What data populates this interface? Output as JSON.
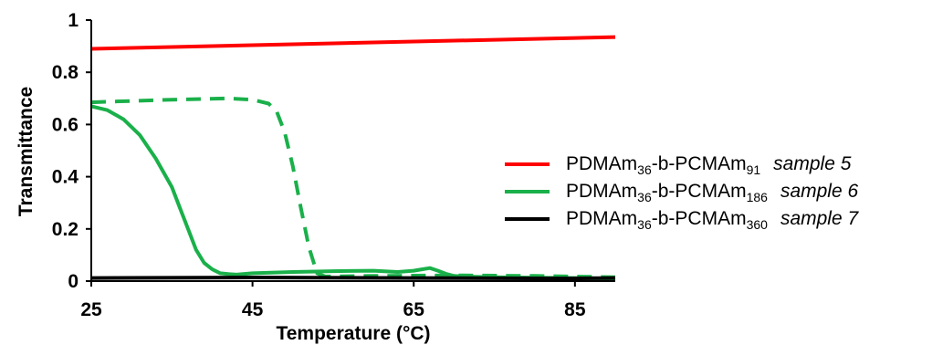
{
  "chart_data": {
    "type": "line",
    "xlabel": "Temperature (°C)",
    "ylabel": "Transmittance",
    "xlim": [
      25,
      90
    ],
    "ylim": [
      0,
      1
    ],
    "x_ticks": [
      "25",
      "45",
      "65",
      "85"
    ],
    "y_ticks": [
      "0",
      "0.2",
      "0.4",
      "0.6",
      "0.8",
      "1"
    ],
    "grid": false,
    "legend_position": "right",
    "series": [
      {
        "name": "PDMAm36-b-PCMAm91 sample 5",
        "label": {
          "base": "PDMAm",
          "sub1": "36",
          "mid": "-b-PCMAm",
          "sub2": "91",
          "note": "sample 5"
        },
        "color": "#ff0000",
        "style": "solid",
        "x": [
          25,
          90
        ],
        "y": [
          0.89,
          0.935
        ]
      },
      {
        "name": "PDMAm36-b-PCMAm186 sample 6",
        "label": {
          "base": "PDMAm",
          "sub1": "36",
          "mid": "-b-PCMAm",
          "sub2": "186",
          "note": "sample 6"
        },
        "color": "#1ab04a",
        "style": "solid",
        "x": [
          25,
          27,
          29,
          31,
          33,
          35,
          36,
          37,
          38,
          39,
          40,
          41,
          42,
          43,
          45,
          50,
          55,
          60,
          63,
          65,
          66,
          67,
          68,
          69,
          70,
          71,
          75,
          80,
          85,
          90
        ],
        "y": [
          0.67,
          0.655,
          0.62,
          0.56,
          0.47,
          0.36,
          0.28,
          0.2,
          0.12,
          0.07,
          0.045,
          0.03,
          0.027,
          0.025,
          0.03,
          0.035,
          0.038,
          0.04,
          0.035,
          0.04,
          0.045,
          0.05,
          0.04,
          0.028,
          0.02,
          0.018,
          0.015,
          0.013,
          0.012,
          0.01
        ]
      },
      {
        "name": "PDMAm36-b-PCMAm186 sample 6 (dashed)",
        "color": "#1ab04a",
        "style": "dashed",
        "x": [
          25,
          28,
          35,
          42,
          45,
          47,
          48,
          49,
          50,
          51,
          52,
          53,
          54,
          60,
          70,
          80,
          90
        ],
        "y": [
          0.685,
          0.688,
          0.695,
          0.7,
          0.695,
          0.68,
          0.65,
          0.57,
          0.44,
          0.28,
          0.13,
          0.03,
          0.018,
          0.02,
          0.022,
          0.02,
          0.015
        ]
      },
      {
        "name": "PDMAm36-b-PCMAm360 sample 7",
        "label": {
          "base": "PDMAm",
          "sub1": "36",
          "mid": "-b-PCMAm",
          "sub2": "360",
          "note": "sample 7"
        },
        "color": "#000000",
        "style": "solid",
        "x": [
          25,
          45,
          65,
          85,
          90
        ],
        "y": [
          0.012,
          0.014,
          0.012,
          0.01,
          0.012
        ]
      }
    ]
  }
}
